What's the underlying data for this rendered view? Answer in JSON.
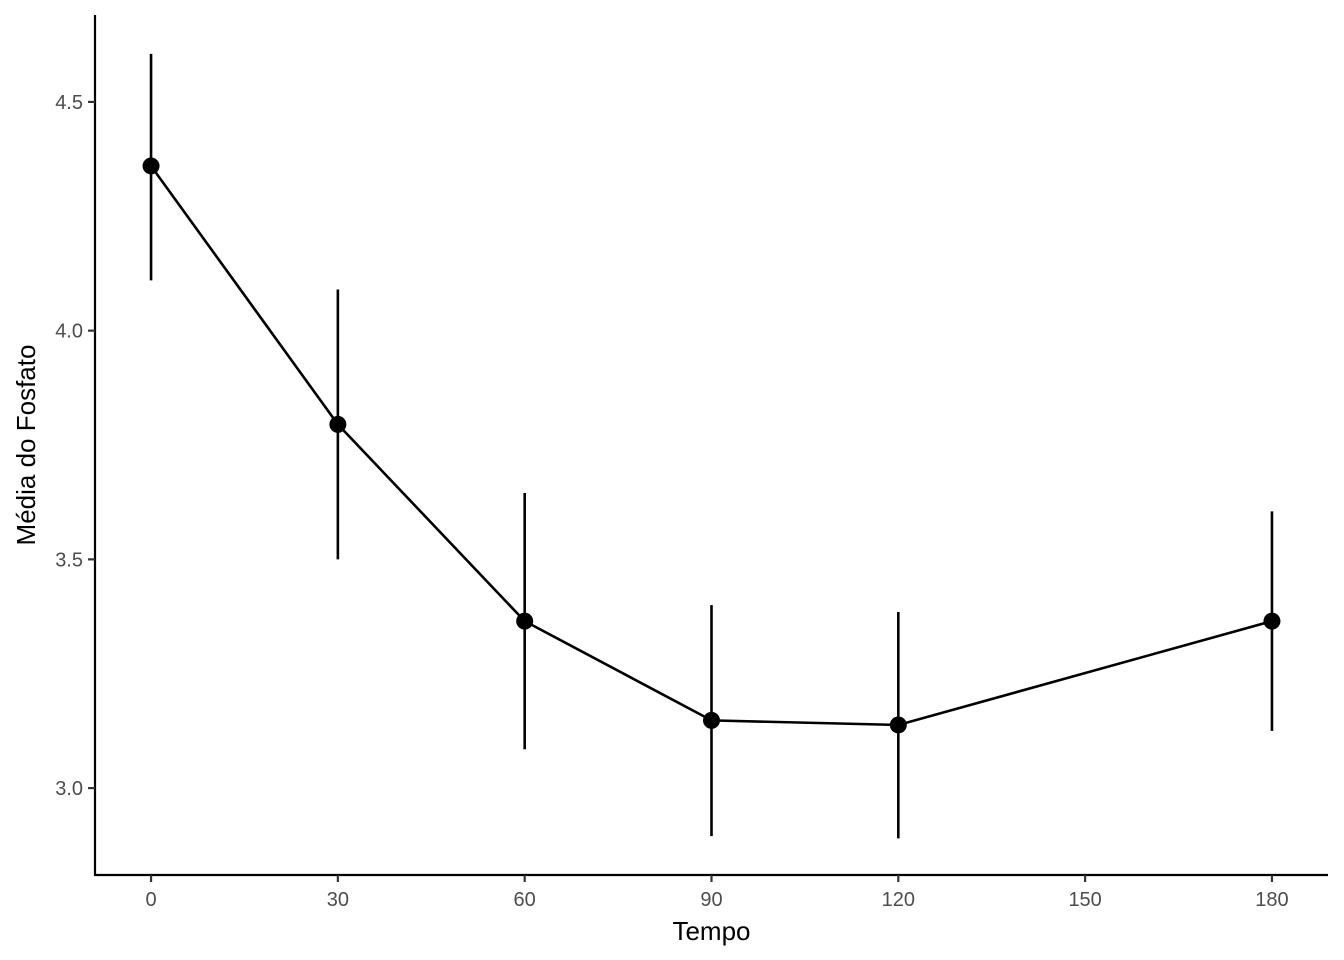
{
  "chart_data": {
    "type": "line",
    "title": "",
    "xlabel": "Tempo",
    "ylabel": "Média do Fosfato",
    "x_ticks": [
      0,
      30,
      60,
      90,
      120,
      150,
      180
    ],
    "y_ticks": [
      3.0,
      3.5,
      4.0,
      4.5
    ],
    "y_tick_labels": [
      "3.0",
      "3.5",
      "4.0",
      "4.5"
    ],
    "xlim": [
      -9,
      189
    ],
    "ylim": [
      2.81,
      4.69
    ],
    "grid": false,
    "legend": "none",
    "color": "#000000",
    "series": [
      {
        "x": [
          0,
          30,
          60,
          90,
          120,
          180
        ],
        "y": [
          4.36,
          3.795,
          3.365,
          3.148,
          3.138,
          3.365
        ],
        "ymin": [
          4.11,
          3.5,
          3.085,
          2.895,
          2.89,
          3.125
        ],
        "ymax": [
          4.605,
          4.09,
          3.645,
          3.4,
          3.385,
          3.605
        ]
      }
    ]
  }
}
